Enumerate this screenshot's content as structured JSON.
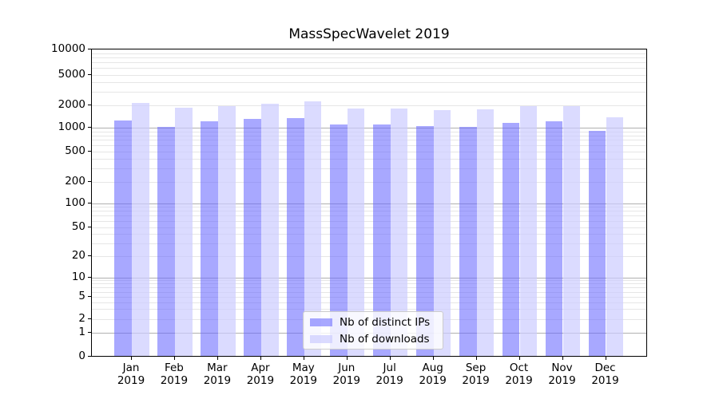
{
  "title": "MassSpecWavelet 2019",
  "chart_data": {
    "type": "bar",
    "title": "MassSpecWavelet 2019",
    "categories": [
      "Jan",
      "Feb",
      "Mar",
      "Apr",
      "May",
      "Jun",
      "Jul",
      "Aug",
      "Sep",
      "Oct",
      "Nov",
      "Dec"
    ],
    "year_label": "2019",
    "series": [
      {
        "name": "Nb of distinct IPs",
        "color": "#6666ff",
        "opacity": 0.57,
        "values": [
          1210,
          990,
          1190,
          1290,
          1320,
          1090,
          1080,
          1030,
          1010,
          1140,
          1180,
          880
        ]
      },
      {
        "name": "Nb of downloads",
        "color": "#ccccff",
        "opacity": 0.7,
        "values": [
          2070,
          1800,
          1900,
          2030,
          2200,
          1750,
          1740,
          1650,
          1710,
          1880,
          1900,
          1330
        ]
      }
    ],
    "yticks": [
      0,
      1,
      2,
      5,
      10,
      20,
      50,
      100,
      200,
      500,
      1000,
      2000,
      5000,
      10000
    ],
    "ylim": [
      0,
      10000
    ],
    "yscale": "log-like with 0 baseline",
    "grid": true,
    "legend_position": "lower center"
  },
  "colors": {
    "grid_major": "#b0b0b0",
    "grid_minor": "#e6e6e6",
    "spine": "#000000",
    "legend_border": "#cccccc",
    "background": "#ffffff"
  }
}
